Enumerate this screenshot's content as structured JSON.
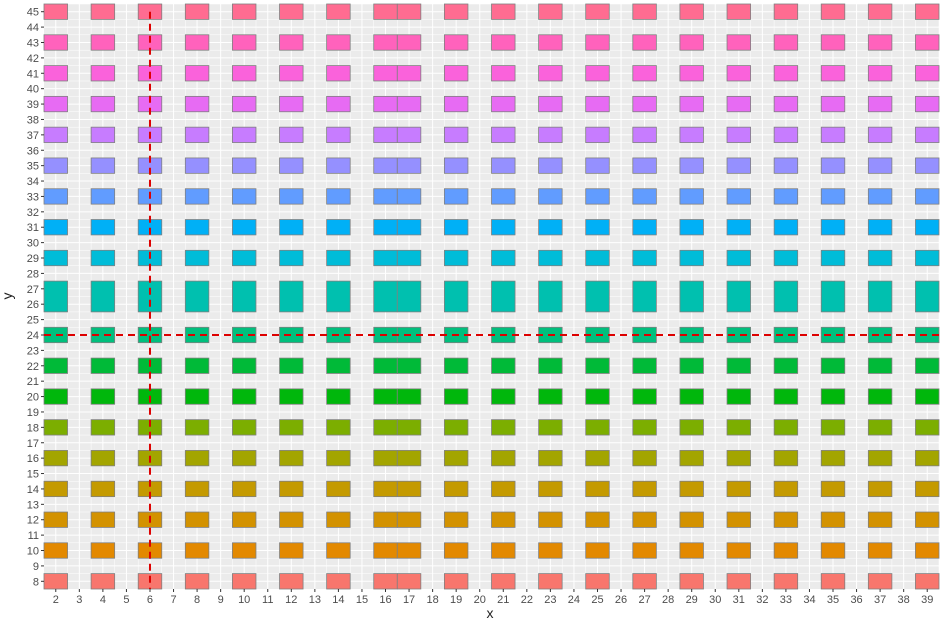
{
  "chart_data": {
    "type": "heatmap",
    "title": "",
    "xlabel": "x",
    "ylabel": "y",
    "xlim": [
      1.5,
      39.5
    ],
    "ylim": [
      7.5,
      45.5
    ],
    "x_ticks": [
      2,
      3,
      4,
      5,
      6,
      7,
      8,
      9,
      10,
      11,
      12,
      13,
      14,
      15,
      16,
      17,
      18,
      19,
      20,
      21,
      22,
      23,
      24,
      25,
      26,
      27,
      28,
      29,
      30,
      31,
      32,
      33,
      34,
      35,
      36,
      37,
      38,
      39
    ],
    "y_ticks": [
      8,
      9,
      10,
      11,
      12,
      13,
      14,
      15,
      16,
      17,
      18,
      19,
      20,
      21,
      22,
      23,
      24,
      25,
      26,
      27,
      28,
      29,
      30,
      31,
      32,
      33,
      34,
      35,
      36,
      37,
      38,
      39,
      40,
      41,
      42,
      43,
      44,
      45
    ],
    "tile_columns": [
      2,
      4,
      6,
      8,
      10,
      12,
      14,
      16,
      17,
      19,
      21,
      23,
      25,
      27,
      29,
      31,
      33,
      35,
      37,
      39
    ],
    "tile_rows": [
      {
        "y": 8,
        "ymin": 7.5,
        "ymax": 8.5,
        "color": "#F8766D"
      },
      {
        "y": 10,
        "ymin": 9.5,
        "ymax": 10.5,
        "color": "#E38900"
      },
      {
        "y": 12,
        "ymin": 11.5,
        "ymax": 12.5,
        "color": "#D39200"
      },
      {
        "y": 14,
        "ymin": 13.5,
        "ymax": 14.5,
        "color": "#C49A00"
      },
      {
        "y": 16,
        "ymin": 15.5,
        "ymax": 16.5,
        "color": "#A3A500"
      },
      {
        "y": 18,
        "ymin": 17.5,
        "ymax": 18.5,
        "color": "#7CAE00"
      },
      {
        "y": 20,
        "ymin": 19.5,
        "ymax": 20.5,
        "color": "#00B70C"
      },
      {
        "y": 22,
        "ymin": 21.5,
        "ymax": 22.5,
        "color": "#00BA38"
      },
      {
        "y": 24,
        "ymin": 23.5,
        "ymax": 24.5,
        "color": "#00BF7D"
      },
      {
        "y": 26.5,
        "ymin": 25.5,
        "ymax": 27.5,
        "color": "#00C0AF"
      },
      {
        "y": 29,
        "ymin": 28.5,
        "ymax": 29.5,
        "color": "#00BCD8"
      },
      {
        "y": 31,
        "ymin": 30.5,
        "ymax": 31.5,
        "color": "#00B0F6"
      },
      {
        "y": 33,
        "ymin": 32.5,
        "ymax": 33.5,
        "color": "#619CFF"
      },
      {
        "y": 35,
        "ymin": 34.5,
        "ymax": 35.5,
        "color": "#9590FF"
      },
      {
        "y": 37,
        "ymin": 36.5,
        "ymax": 37.5,
        "color": "#C77CFF"
      },
      {
        "y": 39,
        "ymin": 38.5,
        "ymax": 39.5,
        "color": "#E76BF3"
      },
      {
        "y": 41,
        "ymin": 40.5,
        "ymax": 41.5,
        "color": "#FA62DB"
      },
      {
        "y": 43,
        "ymin": 42.5,
        "ymax": 43.5,
        "color": "#FF62BC"
      },
      {
        "y": 45,
        "ymin": 44.5,
        "ymax": 45.5,
        "color": "#FF6C91"
      }
    ],
    "reference_lines": [
      {
        "orientation": "vertical",
        "x": 6,
        "color": "#DD0000",
        "style": "dashed"
      },
      {
        "orientation": "horizontal",
        "y": 24,
        "color": "#DD0000",
        "style": "dashed"
      }
    ],
    "panel_background": "#EBEBEB",
    "grid": true,
    "legend": "none"
  }
}
